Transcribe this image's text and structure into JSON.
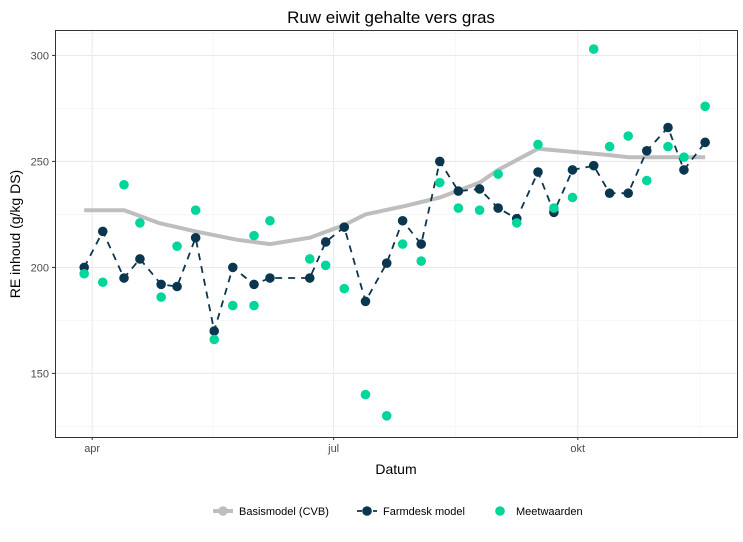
{
  "chart_data": {
    "type": "line",
    "title": "Ruw eiwit gehalte vers gras",
    "xlabel": "Datum",
    "ylabel": "RE inhoud (g/kg DS)",
    "x_unit": "days since 1 April",
    "xlim": [
      -14,
      243
    ],
    "ylim": [
      120,
      312
    ],
    "grid": true,
    "legend_position": "bottom",
    "x_ticks": [
      {
        "x": 0,
        "label": "apr"
      },
      {
        "x": 91,
        "label": "jul"
      },
      {
        "x": 183,
        "label": "okt"
      }
    ],
    "y_ticks": [
      150,
      200,
      250,
      300
    ],
    "series": [
      {
        "name": "Basismodel (CVB)",
        "color": "#bebebe",
        "style": "thick-line",
        "points": [
          [
            -3,
            227
          ],
          [
            12,
            227
          ],
          [
            25,
            221
          ],
          [
            39,
            217
          ],
          [
            55,
            213
          ],
          [
            67,
            211
          ],
          [
            82,
            214
          ],
          [
            95,
            220
          ],
          [
            103,
            225
          ],
          [
            118,
            229
          ],
          [
            131,
            233
          ],
          [
            146,
            240
          ],
          [
            153,
            246
          ],
          [
            168,
            256
          ],
          [
            195,
            253
          ],
          [
            202,
            252
          ],
          [
            231,
            252
          ]
        ]
      },
      {
        "name": "Farmdesk model",
        "color": "#0b3650",
        "style": "dashed-line-points",
        "points": [
          [
            -3,
            200
          ],
          [
            4,
            217
          ],
          [
            12,
            195
          ],
          [
            18,
            204
          ],
          [
            26,
            192
          ],
          [
            32,
            191
          ],
          [
            39,
            214
          ],
          [
            46,
            170
          ],
          [
            53,
            200
          ],
          [
            61,
            192
          ],
          [
            67,
            195
          ],
          [
            82,
            195
          ],
          [
            88,
            212
          ],
          [
            95,
            219
          ],
          [
            103,
            184
          ],
          [
            111,
            202
          ],
          [
            117,
            222
          ],
          [
            124,
            211
          ],
          [
            131,
            250
          ],
          [
            138,
            236
          ],
          [
            146,
            237
          ],
          [
            153,
            228
          ],
          [
            160,
            223
          ],
          [
            168,
            245
          ],
          [
            174,
            226
          ],
          [
            181,
            246
          ],
          [
            189,
            248
          ],
          [
            195,
            235
          ],
          [
            202,
            235
          ],
          [
            209,
            255
          ],
          [
            217,
            266
          ],
          [
            223,
            246
          ],
          [
            231,
            259
          ]
        ]
      },
      {
        "name": "Meetwaarden",
        "color": "#00d69a",
        "style": "points",
        "points": [
          [
            -3,
            197
          ],
          [
            4,
            193
          ],
          [
            12,
            239
          ],
          [
            18,
            221
          ],
          [
            26,
            186
          ],
          [
            32,
            210
          ],
          [
            39,
            227
          ],
          [
            46,
            166
          ],
          [
            53,
            182
          ],
          [
            61,
            215
          ],
          [
            61,
            182
          ],
          [
            67,
            222
          ],
          [
            82,
            204
          ],
          [
            88,
            201
          ],
          [
            95,
            190
          ],
          [
            103,
            140
          ],
          [
            111,
            130
          ],
          [
            117,
            211
          ],
          [
            124,
            203
          ],
          [
            131,
            240
          ],
          [
            138,
            228
          ],
          [
            146,
            227
          ],
          [
            153,
            244
          ],
          [
            160,
            221
          ],
          [
            168,
            258
          ],
          [
            174,
            228
          ],
          [
            181,
            233
          ],
          [
            189,
            303
          ],
          [
            195,
            257
          ],
          [
            202,
            262
          ],
          [
            209,
            241
          ],
          [
            217,
            257
          ],
          [
            223,
            252
          ],
          [
            231,
            276
          ]
        ]
      }
    ]
  }
}
